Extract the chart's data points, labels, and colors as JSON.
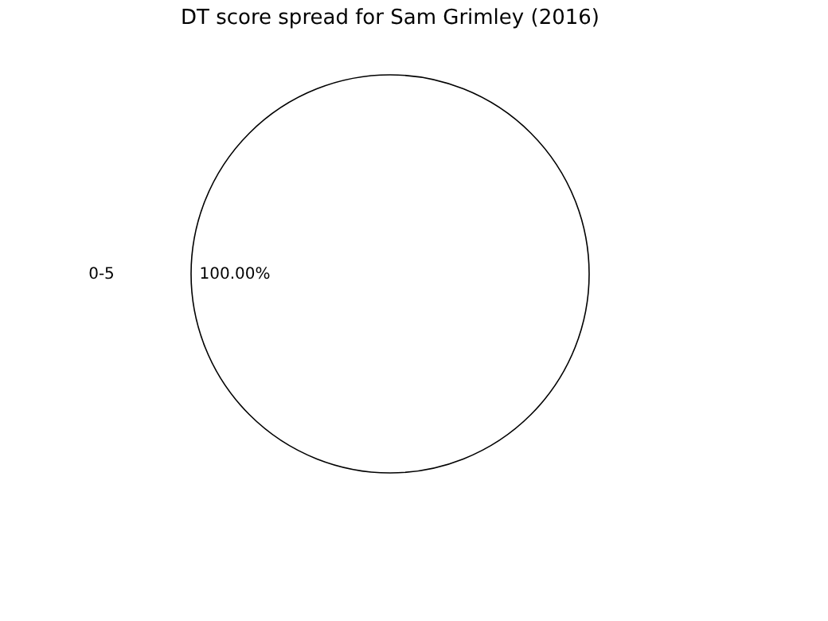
{
  "chart_data": {
    "type": "pie",
    "title": "DT score spread for Sam Grimley (2016)",
    "categories": [
      "0-5"
    ],
    "values": [
      100
    ],
    "colors": [
      "#ffffff"
    ],
    "value_labels": [
      "100.00%"
    ],
    "legend": false
  }
}
